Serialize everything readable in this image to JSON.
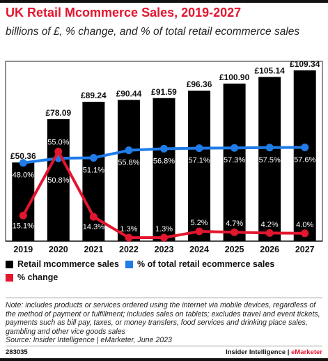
{
  "title": "UK Retail Mcommerce Sales, 2019-2027",
  "subtitle": "billions of £, % change, and % of total retail ecommerce sales",
  "chart_data": {
    "type": "bar",
    "categories": [
      "2019",
      "2020",
      "2021",
      "2022",
      "2023",
      "2024",
      "2025",
      "2026",
      "2027"
    ],
    "series": [
      {
        "name": "Retail mcommerce sales",
        "type": "bar",
        "values": [
          50.36,
          78.09,
          89.24,
          90.44,
          91.59,
          96.36,
          100.9,
          105.14,
          109.34
        ],
        "labels": [
          "£50.36",
          "£78.09",
          "£89.24",
          "£90.44",
          "£91.59",
          "£96.36",
          "£100.90",
          "£105.14",
          "£109.34"
        ],
        "color": "#000000"
      },
      {
        "name": "% of total retail ecommerce sales",
        "type": "line",
        "values": [
          48.0,
          50.8,
          51.1,
          55.8,
          56.8,
          57.1,
          57.3,
          57.5,
          57.6
        ],
        "labels": [
          "48.0%",
          "50.8%",
          "51.1%",
          "55.8%",
          "56.8%",
          "57.1%",
          "57.3%",
          "57.5%",
          "57.6%"
        ],
        "color": "#1f7ce8"
      },
      {
        "name": "% change",
        "type": "line",
        "values": [
          15.1,
          55.0,
          14.3,
          1.3,
          1.3,
          5.2,
          4.7,
          4.2,
          4.0
        ],
        "labels": [
          "15.1%",
          "55.0%",
          "14.3%",
          "1.3%",
          "1.3%",
          "5.2%",
          "4.7%",
          "4.2%",
          "4.0%"
        ],
        "color": "#e2162f"
      }
    ],
    "legend_position": "bottom"
  },
  "legend": {
    "bar": "Retail mcommerce sales",
    "share": "% of total retail ecommerce sales",
    "change": "% change"
  },
  "note": "Note: includes products or services ordered using the internet via mobile devices, regardless of the method of payment or fulfillment; includes sales on tablets; excludes travel and event tickets, payments such as bill pay, taxes, or money transfers, food services and drinking place sales, gambling and other vice goods sales",
  "source": "Source: Insider Intelligence | eMarketer, June 2023",
  "footer": {
    "id": "283035",
    "brand_main": "Insider Intelligence",
    "brand_sep": " | ",
    "brand_accent": "eMarketer"
  }
}
